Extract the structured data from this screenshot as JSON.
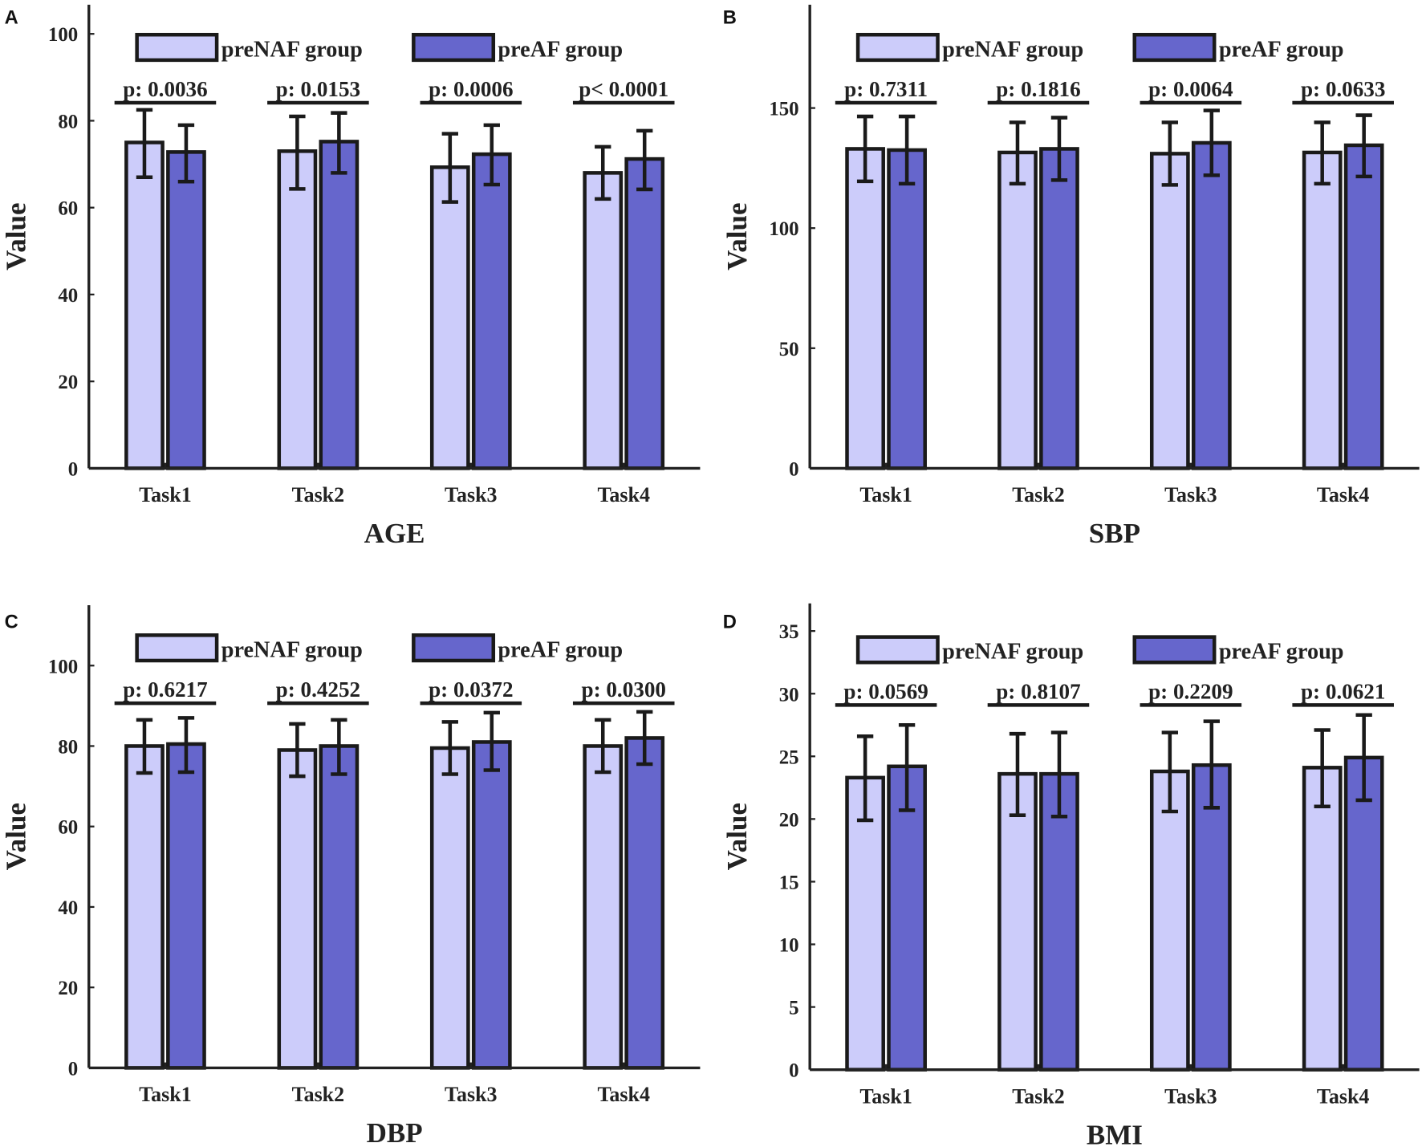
{
  "colors": {
    "preNAF": "#ccccfa",
    "preAF": "#6666cc",
    "stroke": "#1a1a1a"
  },
  "chart_data": [
    {
      "panel": "A",
      "type": "bar",
      "title": "",
      "xlabel": "AGE",
      "ylabel": "Value",
      "categories": [
        "Task1",
        "Task2",
        "Task3",
        "Task4"
      ],
      "ylim": [
        0,
        106.7
      ],
      "yticks": [
        0,
        20,
        40,
        60,
        80,
        100
      ],
      "p_values": [
        "p: 0.0036",
        "p: 0.0153",
        "p: 0.0006",
        "p< 0.0001"
      ],
      "series": [
        {
          "name": "preNAF group",
          "values": [
            75,
            73,
            69.3,
            68
          ],
          "err_low": [
            67,
            64.3,
            61.3,
            62
          ],
          "err_high": [
            82.5,
            81,
            77,
            74
          ]
        },
        {
          "name": "preAF group",
          "values": [
            72.8,
            75.2,
            72.3,
            71.2
          ],
          "err_low": [
            66,
            68,
            65.3,
            64.2
          ],
          "err_high": [
            79,
            81.8,
            79,
            77.7
          ]
        }
      ]
    },
    {
      "panel": "B",
      "type": "bar",
      "title": "",
      "xlabel": "SBP",
      "ylabel": "Value",
      "categories": [
        "Task1",
        "Task2",
        "Task3",
        "Task4"
      ],
      "ylim": [
        0,
        193
      ],
      "yticks": [
        0,
        50,
        100,
        150
      ],
      "p_values": [
        "p: 0.7311",
        "p: 0.1816",
        "p: 0.0064",
        "p: 0.0633"
      ],
      "series": [
        {
          "name": "preNAF group",
          "values": [
            133,
            131.5,
            131,
            131.5
          ],
          "err_low": [
            119.5,
            118.5,
            118,
            118.5
          ],
          "err_high": [
            146.5,
            144,
            144,
            144
          ]
        },
        {
          "name": "preAF group",
          "values": [
            132.5,
            133,
            135.5,
            134.5
          ],
          "err_low": [
            118.5,
            120,
            122,
            121.5
          ],
          "err_high": [
            146.5,
            146,
            149,
            147
          ]
        }
      ]
    },
    {
      "panel": "C",
      "type": "bar",
      "title": "",
      "xlabel": "DBP",
      "ylabel": "Value",
      "categories": [
        "Task1",
        "Task2",
        "Task3",
        "Task4"
      ],
      "ylim": [
        0,
        115
      ],
      "yticks": [
        0,
        20,
        40,
        60,
        80,
        100
      ],
      "p_values": [
        "p: 0.6217",
        "p: 0.4252",
        "p: 0.0372",
        "p: 0.0300"
      ],
      "series": [
        {
          "name": "preNAF group",
          "values": [
            80,
            79,
            79.5,
            80
          ],
          "err_low": [
            73.3,
            72.5,
            73,
            73.5
          ],
          "err_high": [
            86.5,
            85.5,
            86,
            86.5
          ]
        },
        {
          "name": "preAF group",
          "values": [
            80.5,
            80,
            81,
            82
          ],
          "err_low": [
            73.5,
            73,
            74,
            75.5
          ],
          "err_high": [
            87,
            86.5,
            88.3,
            88.5
          ]
        }
      ]
    },
    {
      "panel": "D",
      "type": "bar",
      "title": "",
      "xlabel": "BMI",
      "ylabel": "Value",
      "categories": [
        "Task1",
        "Task2",
        "Task3",
        "Task4"
      ],
      "ylim": [
        0,
        37.2
      ],
      "yticks": [
        0,
        5,
        10,
        15,
        20,
        25,
        30,
        35
      ],
      "p_values": [
        "p: 0.0569",
        "p: 0.8107",
        "p: 0.2209",
        "p: 0.0621"
      ],
      "series": [
        {
          "name": "preNAF group",
          "values": [
            23.3,
            23.6,
            23.8,
            24.1
          ],
          "err_low": [
            19.9,
            20.3,
            20.6,
            21
          ],
          "err_high": [
            26.6,
            26.8,
            26.9,
            27.1
          ]
        },
        {
          "name": "preAF group",
          "values": [
            24.2,
            23.6,
            24.3,
            24.9
          ],
          "err_low": [
            20.7,
            20.2,
            20.9,
            21.5
          ],
          "err_high": [
            27.5,
            26.9,
            27.8,
            28.3
          ]
        }
      ]
    }
  ]
}
